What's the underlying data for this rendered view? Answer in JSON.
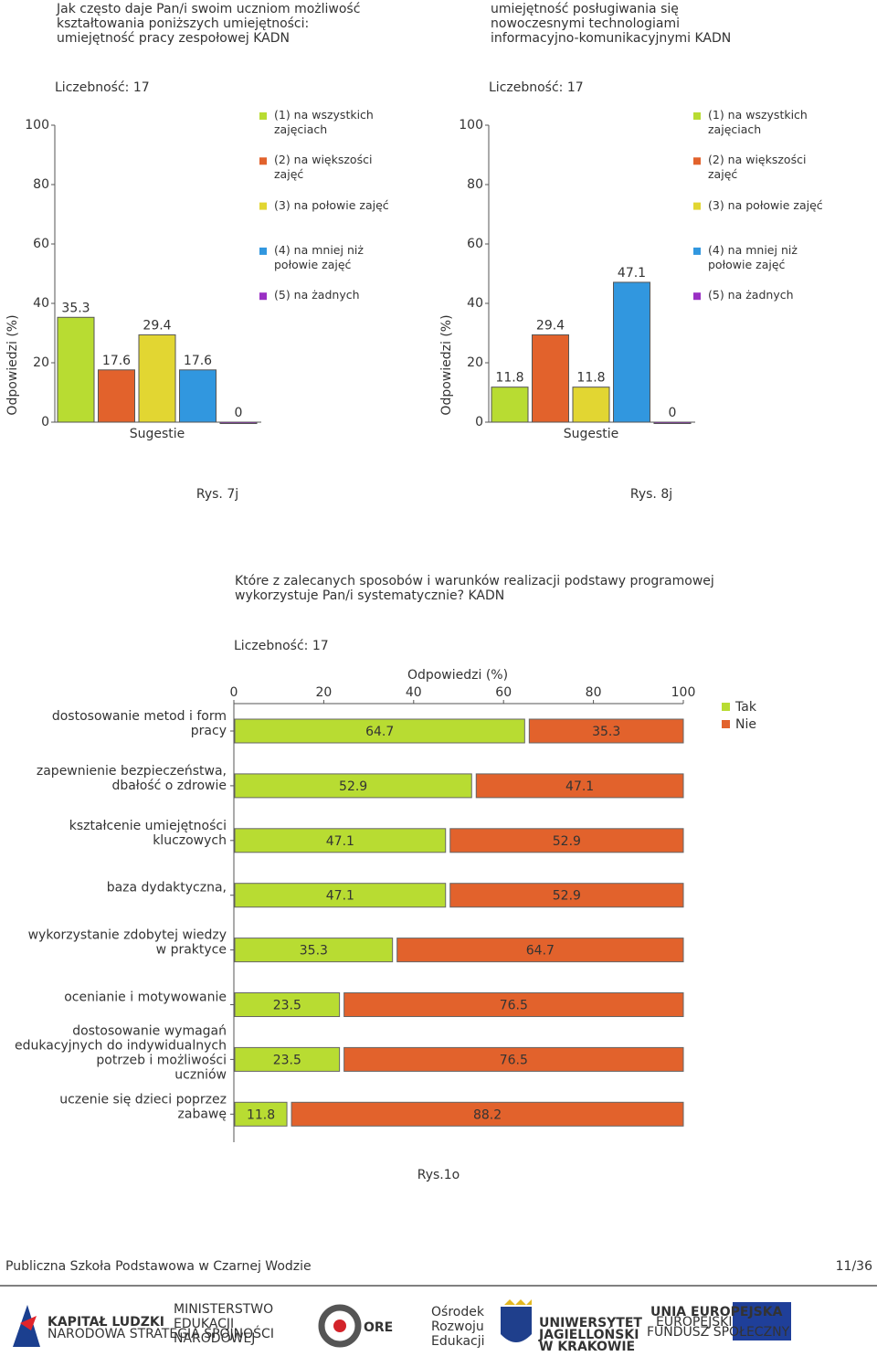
{
  "chart_data": [
    {
      "type": "bar",
      "title": [
        "Jak często daje Pan/i swoim uczniom możliwość",
        "kształtowania poniższych umiejętności:",
        "umiejętność pracy zespołowej KADN"
      ],
      "subtitle": "Liczebność: 17",
      "ylabel": "Odpowiedzi (%)",
      "xlabel": "Sugestie",
      "ylim": [
        0,
        100
      ],
      "yticks": [
        0,
        20,
        40,
        60,
        80,
        100
      ],
      "series": [
        {
          "name": "(1) na wszystkich zajęciach",
          "color": "#b8dc32",
          "values": [
            35.3
          ]
        },
        {
          "name": "(2) na większości zajęć",
          "color": "#e2622c",
          "values": [
            17.6
          ]
        },
        {
          "name": "(3) na połowie zajęć",
          "color": "#e2d632",
          "values": [
            29.4
          ]
        },
        {
          "name": "(4) na mniej niż połowie zajęć",
          "color": "#3197df",
          "values": [
            17.6
          ]
        },
        {
          "name": "(5) na żadnych",
          "color": "#9a30c4",
          "values": [
            0
          ]
        }
      ]
    },
    {
      "type": "bar",
      "title": [
        "umiejętność posługiwania się",
        "nowoczesnymi technologiami",
        "informacyjno-komunikacyjnymi KADN"
      ],
      "subtitle": "Liczebność: 17",
      "ylabel": "Odpowiedzi (%)",
      "xlabel": "Sugestie",
      "ylim": [
        0,
        100
      ],
      "yticks": [
        0,
        20,
        40,
        60,
        80,
        100
      ],
      "series": [
        {
          "name": "(1) na wszystkich zajęciach",
          "color": "#b8dc32",
          "values": [
            11.8
          ]
        },
        {
          "name": "(2) na większości zajęć",
          "color": "#e2622c",
          "values": [
            29.4
          ]
        },
        {
          "name": "(3) na połowie zajęć",
          "color": "#e2d632",
          "values": [
            11.8
          ]
        },
        {
          "name": "(4) na mniej niż połowie zajęć",
          "color": "#3197df",
          "values": [
            47.1
          ]
        },
        {
          "name": "(5) na żadnych",
          "color": "#9a30c4",
          "values": [
            0
          ]
        }
      ]
    },
    {
      "type": "hbar-stacked",
      "title": [
        "Które z zalecanych sposobów i warunków realizacji podstawy programowej",
        "wykorzystuje Pan/i systematycznie?  KADN"
      ],
      "subtitle": "Liczebność: 17",
      "xlabel": "Odpowiedzi (%)",
      "xlim": [
        0,
        100
      ],
      "xticks": [
        0,
        20,
        40,
        60,
        80,
        100
      ],
      "categories": [
        [
          "dostosowanie metod i form",
          "pracy"
        ],
        [
          "zapewnienie bezpieczeństwa,",
          "dbałość o zdrowie"
        ],
        [
          "kształcenie umiejętności",
          "kluczowych"
        ],
        [
          "baza dydaktyczna,"
        ],
        [
          "wykorzystanie zdobytej wiedzy",
          "w praktyce"
        ],
        [
          "ocenianie i motywowanie"
        ],
        [
          "dostosowanie wymagań",
          "edukacyjnych do indywidualnych",
          "potrzeb i możliwości",
          "uczniów"
        ],
        [
          "uczenie się dzieci poprzez",
          "zabawę"
        ]
      ],
      "series": [
        {
          "name": "Tak",
          "color": "#b8dc32",
          "values": [
            64.7,
            52.9,
            47.1,
            47.1,
            35.3,
            23.5,
            23.5,
            11.8
          ]
        },
        {
          "name": "Nie",
          "color": "#e2622c",
          "values": [
            35.3,
            47.1,
            52.9,
            52.9,
            64.7,
            76.5,
            76.5,
            88.2
          ]
        }
      ]
    }
  ],
  "captions": [
    "Rys. 7j",
    "Rys. 8j",
    "Rys.1o"
  ],
  "footer": {
    "school": "Publiczna Szkoła Podstawowa w Czarnej Wodzie",
    "page": "11/36"
  },
  "logos": {
    "kl": [
      "KAPITAŁ LUDZKI",
      "NARODOWA STRATEGIA SPÓJNOŚCI"
    ],
    "men": [
      "MINISTERSTWO",
      "EDUKACJI",
      "NARODOWEJ"
    ],
    "ore": [
      "ORE",
      "Ośrodek",
      "Rozwoju",
      "Edukacji"
    ],
    "uj": [
      "UNIWERSYTET",
      "JAGIELLOŃSKI",
      "W KRAKOWIE"
    ],
    "ue": [
      "UNIA EUROPEJSKA",
      "EUROPEJSKI",
      "FUNDUSZ SPOŁECZNY"
    ]
  }
}
